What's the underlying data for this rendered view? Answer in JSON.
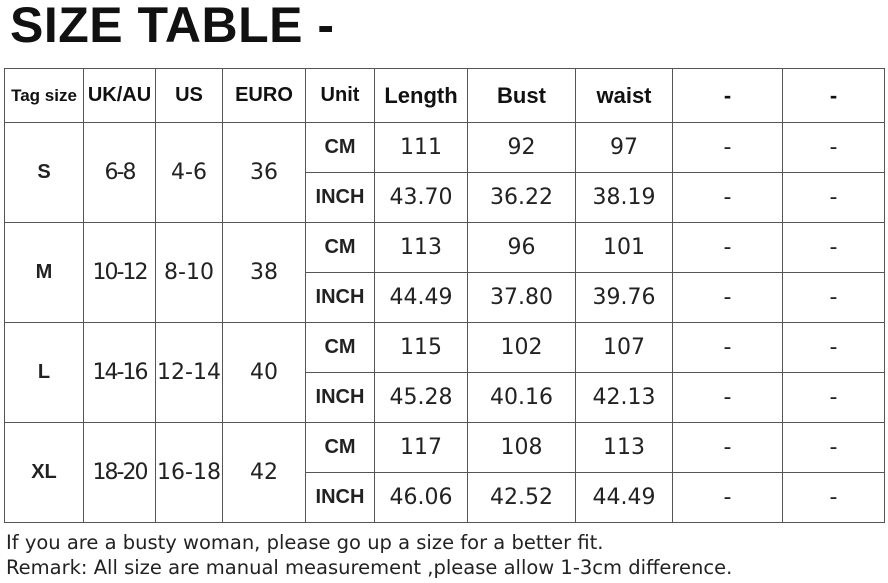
{
  "title": "SIZE TABLE -",
  "headers": [
    "Tag size",
    "UK/AU",
    "US",
    "EURO",
    "Unit",
    "Length",
    "Bust",
    "waist",
    "-",
    "-"
  ],
  "sizes": [
    {
      "tag": "S",
      "uk": "6-8",
      "us": "4-6",
      "euro": "36",
      "rows": [
        {
          "unit": "CM",
          "length": "111",
          "bust": "92",
          "waist": "97",
          "c1": "-",
          "c2": "-"
        },
        {
          "unit": "INCH",
          "length": "43.70",
          "bust": "36.22",
          "waist": "38.19",
          "c1": "-",
          "c2": "-"
        }
      ]
    },
    {
      "tag": "M",
      "uk": "10-12",
      "us": "8-10",
      "euro": "38",
      "rows": [
        {
          "unit": "CM",
          "length": "113",
          "bust": "96",
          "waist": "101",
          "c1": "-",
          "c2": "-"
        },
        {
          "unit": "INCH",
          "length": "44.49",
          "bust": "37.80",
          "waist": "39.76",
          "c1": "-",
          "c2": "-"
        }
      ]
    },
    {
      "tag": "L",
      "uk": "14-16",
      "us": "12-14",
      "euro": "40",
      "rows": [
        {
          "unit": "CM",
          "length": "115",
          "bust": "102",
          "waist": "107",
          "c1": "-",
          "c2": "-"
        },
        {
          "unit": "INCH",
          "length": "45.28",
          "bust": "40.16",
          "waist": "42.13",
          "c1": "-",
          "c2": "-"
        }
      ]
    },
    {
      "tag": "XL",
      "uk": "18-20",
      "us": "16-18",
      "euro": "42",
      "rows": [
        {
          "unit": "CM",
          "length": "117",
          "bust": "108",
          "waist": "113",
          "c1": "-",
          "c2": "-"
        },
        {
          "unit": "INCH",
          "length": "46.06",
          "bust": "42.52",
          "waist": "44.49",
          "c1": "-",
          "c2": "-"
        }
      ]
    }
  ],
  "notes": [
    "If you are a busty woman, please go up a size for a better fit.",
    "Remark: All size are manual measurement ,please allow 1-3cm difference."
  ]
}
